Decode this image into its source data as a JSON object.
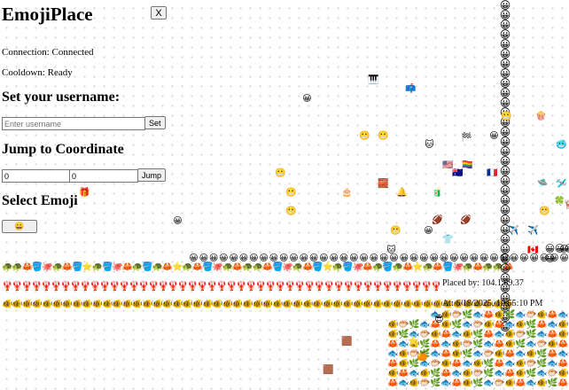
{
  "app": {
    "title": "EmojiPlace",
    "close_label": "X"
  },
  "status": {
    "connection": "Connection: Connected",
    "cooldown": "Cooldown: Ready"
  },
  "username": {
    "heading": "Set your username:",
    "placeholder": "Enter username",
    "value": "",
    "button": "Set"
  },
  "jump": {
    "heading": "Jump to Coordinate",
    "x_value": "0",
    "y_value": "0",
    "button": "Jump"
  },
  "emoji_select": {
    "heading": "Select Emoji",
    "selected": "😀"
  },
  "pixel_info": {
    "placed_by": "Placed by: 104.1.89.37",
    "at": "At: 6/18/2025, 10:55:10 PM"
  },
  "grid": {
    "row1_pattern": "🐢🐢🦀🪣🐙🐢🦀🪣⭐🐢🪣🐙🦀🐢🪣🐢🦀⭐🐢🦀🪣🐙🐢🦀",
    "row2_emoji": "🦞",
    "row3_emoji": "🐠",
    "line_emoji": "😀",
    "bottom_pattern": "🐟🐠🌿🦀🐟🐠🐡🌿🐟🦀🐠🌿🐟🐡🐠🦀",
    "scatter": [
      {
        "e": "🎹"
      },
      {
        "e": "📫"
      },
      {
        "e": "😀"
      },
      {
        "e": "🍿"
      },
      {
        "e": "😬"
      },
      {
        "e": "😬"
      },
      {
        "e": "😬"
      },
      {
        "e": "🐱"
      },
      {
        "e": "🏁"
      },
      {
        "e": "😀"
      },
      {
        "e": "🇺🇸"
      },
      {
        "e": "🏳️‍🌈"
      },
      {
        "e": "🇦🇺"
      },
      {
        "e": "🇫🇷"
      },
      {
        "e": "🥶"
      },
      {
        "e": "😬"
      },
      {
        "e": "🔔"
      },
      {
        "e": "🧃"
      },
      {
        "e": "🎂"
      },
      {
        "e": "😬"
      },
      {
        "e": "😬"
      },
      {
        "e": "🏈"
      },
      {
        "e": "🏈"
      },
      {
        "e": "✈️"
      },
      {
        "e": "✈️"
      },
      {
        "e": "🇨🇦"
      },
      {
        "e": "👕"
      },
      {
        "e": "😀"
      },
      {
        "e": "🐱"
      },
      {
        "e": "🎁"
      },
      {
        "e": "🧱"
      },
      {
        "e": "😀"
      },
      {
        "e": "😬"
      },
      {
        "e": "😀"
      },
      {
        "e": "🍀"
      },
      {
        "e": "🛸"
      },
      {
        "e": "🛩️"
      },
      {
        "e": "🦌"
      },
      {
        "e": "😬"
      },
      {
        "e": "🟫"
      },
      {
        "e": "🟫"
      },
      {
        "e": "😎"
      },
      {
        "e": "⭐"
      },
      {
        "e": "🍊"
      }
    ]
  }
}
